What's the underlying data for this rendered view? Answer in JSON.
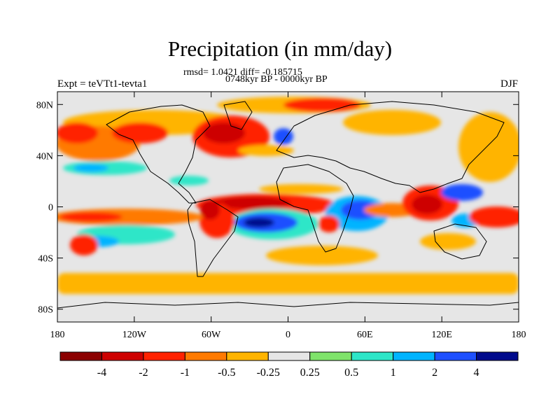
{
  "title": "Precipitation (in mm/day)",
  "stats_line": "rmsd= 1.0421 diff= -0.185715",
  "period_line": "0748kyr BP - 0000kyr BP",
  "experiment_label": "Expt = teVTt1-tevta1",
  "season_label": "DJF",
  "map": {
    "lat_ticks": [
      "80N",
      "40N",
      "0",
      "40S",
      "80S"
    ],
    "lat_tick_values": [
      80,
      40,
      0,
      -40,
      -80
    ],
    "lon_ticks": [
      "180",
      "120W",
      "60W",
      "0",
      "60E",
      "120E",
      "180"
    ],
    "lon_tick_values": [
      -180,
      -120,
      -60,
      0,
      60,
      120,
      180
    ],
    "background_color": "#e6e6e6",
    "coastline_color": "#000000"
  },
  "colorbar": {
    "colors": [
      "#8b0000",
      "#cd0000",
      "#ff2200",
      "#ff7a00",
      "#ffb400",
      "#e6e6e6",
      "#7fe36b",
      "#2de6c8",
      "#00b4ff",
      "#1e50ff",
      "#000a8c"
    ],
    "labels": [
      "-4",
      "-2",
      "-1",
      "-0.5",
      "-0.25",
      "0.25",
      "0.5",
      "1",
      "2",
      "4"
    ]
  }
}
